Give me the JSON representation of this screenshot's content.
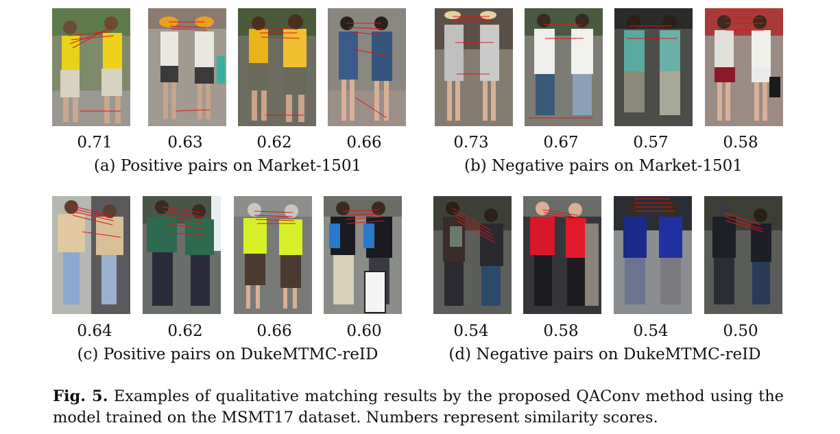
{
  "panels": [
    {
      "id": "a",
      "caption": "(a) Positive pairs on Market-1501",
      "scores": [
        "0.71",
        "0.63",
        "0.62",
        "0.66"
      ]
    },
    {
      "id": "b",
      "caption": "(b) Negative pairs on Market-1501",
      "scores": [
        "0.73",
        "0.67",
        "0.57",
        "0.58"
      ]
    },
    {
      "id": "c",
      "caption": "(c) Positive pairs on DukeMTMC-reID",
      "scores": [
        "0.64",
        "0.62",
        "0.66",
        "0.60"
      ]
    },
    {
      "id": "d",
      "caption": "(d) Negative pairs on DukeMTMC-reID",
      "scores": [
        "0.54",
        "0.58",
        "0.54",
        "0.50"
      ]
    }
  ],
  "figure_caption": {
    "label": "Fig. 5.",
    "text": "Examples of qualitative matching results by the proposed QAConv method using the model trained on the MSMT17 dataset. Numbers represent similarity scores."
  },
  "colors": {
    "match_line": "#e01515",
    "text": "#111111"
  }
}
